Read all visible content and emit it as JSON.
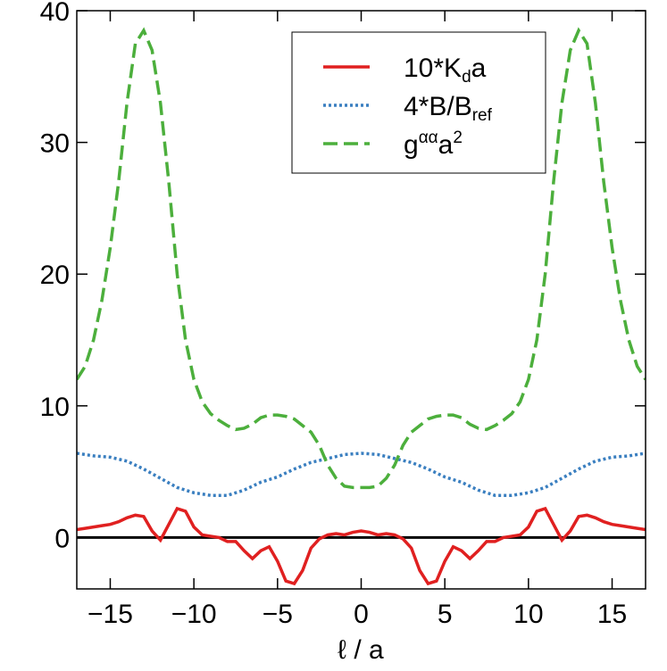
{
  "chart_data": {
    "type": "line",
    "x_label": "ℓ / a",
    "x": [
      -17,
      -16.5,
      -16,
      -15.5,
      -15,
      -14.5,
      -14,
      -13.5,
      -13,
      -12.5,
      -12,
      -11.5,
      -11,
      -10.5,
      -10,
      -9.5,
      -9,
      -8.5,
      -8,
      -7.5,
      -7,
      -6.5,
      -6,
      -5.5,
      -5,
      -4.5,
      -4,
      -3.5,
      -3,
      -2.5,
      -2,
      -1.5,
      -1,
      -0.5,
      0,
      0.5,
      1,
      1.5,
      2,
      2.5,
      3,
      3.5,
      4,
      4.5,
      5,
      5.5,
      6,
      6.5,
      7,
      7.5,
      8,
      8.5,
      9,
      9.5,
      10,
      10.5,
      11,
      11.5,
      12,
      12.5,
      13,
      13.5,
      14,
      14.5,
      15,
      15.5,
      16,
      16.5,
      17
    ],
    "series": [
      {
        "name": [
          "10*K",
          "d",
          "a"
        ],
        "name_style": [
          "normal",
          "sub",
          "normal"
        ],
        "color": "#e02020",
        "dash": "solid",
        "values": [
          0.6,
          0.7,
          0.8,
          0.9,
          1,
          1.2,
          1.5,
          1.7,
          1.6,
          0.5,
          -0.2,
          1,
          2.2,
          2,
          0.8,
          0.2,
          0.1,
          0,
          -0.3,
          -0.3,
          -1,
          -1.6,
          -1,
          -0.7,
          -1.8,
          -3.3,
          -3.5,
          -2.5,
          -0.8,
          -0.1,
          0.2,
          0.3,
          0.2,
          0.4,
          0.5,
          0.4,
          0.2,
          0.3,
          0.2,
          -0.1,
          -0.8,
          -2.5,
          -3.5,
          -3.3,
          -1.8,
          -0.7,
          -1,
          -1.6,
          -1,
          -0.3,
          -0.3,
          0,
          0.1,
          0.2,
          0.8,
          2,
          2.2,
          1,
          -0.2,
          0.5,
          1.6,
          1.7,
          1.5,
          1.2,
          1,
          0.9,
          0.8,
          0.7,
          0.6
        ]
      },
      {
        "name": [
          "4*B/B",
          "ref"
        ],
        "name_style": [
          "normal",
          "sub"
        ],
        "color": "#3a7fc0",
        "dash": "dotted",
        "values": [
          6.4,
          6.3,
          6.2,
          6.15,
          6.1,
          5.95,
          5.8,
          5.5,
          5.2,
          4.85,
          4.5,
          4.15,
          3.8,
          3.6,
          3.4,
          3.3,
          3.2,
          3.2,
          3.2,
          3.4,
          3.6,
          3.9,
          4.2,
          4.4,
          4.6,
          4.9,
          5.2,
          5.45,
          5.7,
          5.85,
          6.0,
          6.15,
          6.3,
          6.35,
          6.4,
          6.35,
          6.3,
          6.15,
          6.0,
          5.85,
          5.7,
          5.45,
          5.2,
          4.9,
          4.6,
          4.4,
          4.2,
          3.9,
          3.6,
          3.4,
          3.2,
          3.2,
          3.2,
          3.3,
          3.4,
          3.6,
          3.8,
          4.15,
          4.5,
          4.85,
          5.2,
          5.5,
          5.8,
          5.95,
          6.1,
          6.15,
          6.2,
          6.3,
          6.4
        ]
      },
      {
        "name": [
          "g",
          "αα",
          "a",
          "2"
        ],
        "name_style": [
          "normal",
          "sup",
          "normal",
          "sup"
        ],
        "color": "#4caf3c",
        "dash": "dashed",
        "values": [
          12,
          13,
          15,
          18,
          22,
          27,
          33,
          37.5,
          38.5,
          37,
          33,
          27,
          20,
          15,
          12,
          10.3,
          9.4,
          8.9,
          8.5,
          8.2,
          8.3,
          8.6,
          9.1,
          9.3,
          9.3,
          9.2,
          9,
          8.5,
          8,
          7,
          5.5,
          4.5,
          3.9,
          3.8,
          3.8,
          3.8,
          3.9,
          4.5,
          5.5,
          7,
          8,
          8.5,
          9,
          9.2,
          9.3,
          9.3,
          9.1,
          8.6,
          8.3,
          8.2,
          8.5,
          8.9,
          9.4,
          10.3,
          12,
          15,
          20,
          27,
          33,
          37,
          38.5,
          37.5,
          33,
          27,
          22,
          18,
          15,
          13,
          12
        ]
      }
    ],
    "xlim": [
      -17,
      17
    ],
    "ylim": [
      -3.9,
      40
    ],
    "xticks": [
      {
        "value": -15,
        "label": "−15"
      },
      {
        "value": -10,
        "label": "−10"
      },
      {
        "value": -5,
        "label": "−5"
      },
      0,
      5,
      10,
      15
    ],
    "yticks": [
      0,
      10,
      20,
      30,
      40
    ],
    "hline": 0,
    "legend": "upper center",
    "grid": false
  }
}
